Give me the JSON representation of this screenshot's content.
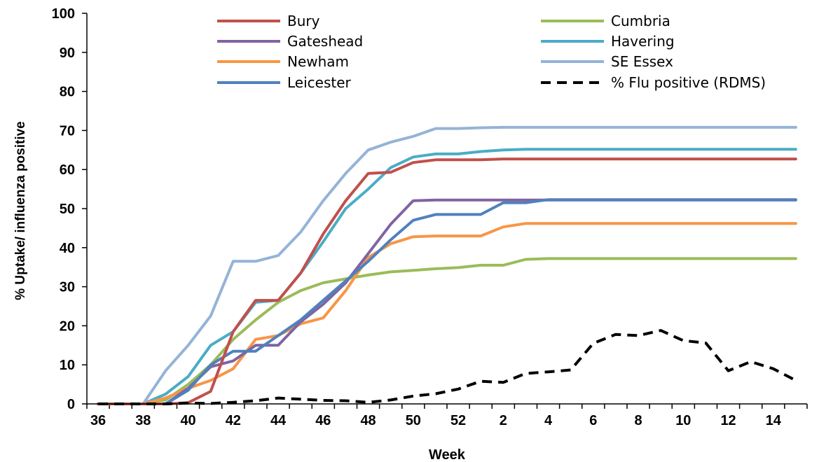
{
  "chart_data": {
    "type": "line",
    "title": "",
    "xlabel": "Week",
    "ylabel": "% Uptake/ influenza positive",
    "ylim": [
      0,
      100
    ],
    "yticks": [
      0,
      10,
      20,
      30,
      40,
      50,
      60,
      70,
      80,
      90,
      100
    ],
    "x": [
      "36",
      "37",
      "38",
      "39",
      "40",
      "41",
      "42",
      "43",
      "44",
      "45",
      "46",
      "47",
      "48",
      "49",
      "50",
      "51",
      "52",
      "1",
      "2",
      "3",
      "4",
      "5",
      "6",
      "7",
      "8",
      "9",
      "10",
      "11",
      "12",
      "13",
      "14",
      "15"
    ],
    "xtick_labels": [
      "36",
      "38",
      "40",
      "42",
      "44",
      "46",
      "48",
      "50",
      "52",
      "2",
      "4",
      "6",
      "8",
      "10",
      "12",
      "14"
    ],
    "grid": false,
    "legend_position": "top",
    "series": [
      {
        "name": "Bury",
        "color": "#C0504D",
        "dash": false,
        "values": [
          0,
          0,
          0,
          0,
          0.3,
          3.2,
          18.5,
          26.5,
          26.5,
          33.5,
          43.5,
          52,
          59,
          59.3,
          61.8,
          62.5,
          62.5,
          62.5,
          62.7,
          62.7,
          62.7,
          62.7,
          62.7,
          62.7,
          62.7,
          62.7,
          62.7,
          62.7,
          62.7,
          62.7,
          62.7,
          62.7
        ]
      },
      {
        "name": "Cumbria",
        "color": "#9BBB59",
        "dash": false,
        "values": [
          0,
          0,
          0,
          1,
          5,
          10,
          16.5,
          21.5,
          26,
          29,
          31,
          32,
          33,
          33.8,
          34.2,
          34.6,
          34.9,
          35.5,
          35.5,
          37,
          37.2,
          37.2,
          37.2,
          37.2,
          37.2,
          37.2,
          37.2,
          37.2,
          37.2,
          37.2,
          37.2,
          37.2
        ]
      },
      {
        "name": "Gateshead",
        "color": "#8064A2",
        "dash": false,
        "values": [
          0,
          0,
          0,
          0,
          4,
          9.5,
          11,
          15,
          15,
          21,
          25.5,
          31,
          38.5,
          46,
          52,
          52.2,
          52.2,
          52.2,
          52.2,
          52.2,
          52.2,
          52.2,
          52.2,
          52.2,
          52.2,
          52.2,
          52.2,
          52.2,
          52.2,
          52.2,
          52.2,
          52.2
        ]
      },
      {
        "name": "Havering",
        "color": "#4BACC6",
        "dash": false,
        "values": [
          0,
          0,
          0,
          2.5,
          7,
          15,
          18.5,
          26,
          26.5,
          33.5,
          41.5,
          50,
          55,
          60.5,
          63.2,
          64,
          64,
          64.6,
          65,
          65.2,
          65.2,
          65.2,
          65.2,
          65.2,
          65.2,
          65.2,
          65.2,
          65.2,
          65.2,
          65.2,
          65.2,
          65.2
        ]
      },
      {
        "name": "Newham",
        "color": "#F79646",
        "dash": false,
        "values": [
          0,
          0,
          0,
          1.5,
          4,
          6,
          9,
          16.5,
          17.5,
          20.5,
          22,
          29,
          37.5,
          41,
          42.8,
          43,
          43,
          43,
          45.3,
          46.2,
          46.2,
          46.2,
          46.2,
          46.2,
          46.2,
          46.2,
          46.2,
          46.2,
          46.2,
          46.2,
          46.2,
          46.2
        ]
      },
      {
        "name": "SE Essex",
        "color": "#95B3D7",
        "dash": false,
        "values": [
          0,
          0,
          0,
          8.5,
          15,
          22.5,
          36.5,
          36.5,
          38,
          44,
          52,
          59,
          65,
          67,
          68.5,
          70.5,
          70.5,
          70.7,
          70.8,
          70.8,
          70.8,
          70.8,
          70.8,
          70.8,
          70.8,
          70.8,
          70.8,
          70.8,
          70.8,
          70.8,
          70.8,
          70.8
        ]
      },
      {
        "name": "Leicester",
        "color": "#4F81BD",
        "dash": false,
        "values": [
          0,
          0,
          0,
          0,
          3.5,
          10,
          13.5,
          13.5,
          17.5,
          21.5,
          26.5,
          31.5,
          36.5,
          42,
          47,
          48.5,
          48.5,
          48.5,
          51.5,
          51.5,
          52.3,
          52.3,
          52.3,
          52.3,
          52.3,
          52.3,
          52.3,
          52.3,
          52.3,
          52.3,
          52.3,
          52.3
        ]
      },
      {
        "name": "% Flu positive (RDMS)",
        "color": "#000000",
        "dash": true,
        "values": [
          0,
          0,
          0,
          0,
          0.2,
          0.1,
          0.4,
          0.8,
          1.5,
          1.2,
          0.9,
          0.8,
          0.4,
          1,
          2,
          2.6,
          3.8,
          5.8,
          5.5,
          7.8,
          8.2,
          8.7,
          15.5,
          17.8,
          17.5,
          18.8,
          16.2,
          15.6,
          8.5,
          10.8,
          9,
          6
        ]
      }
    ]
  }
}
